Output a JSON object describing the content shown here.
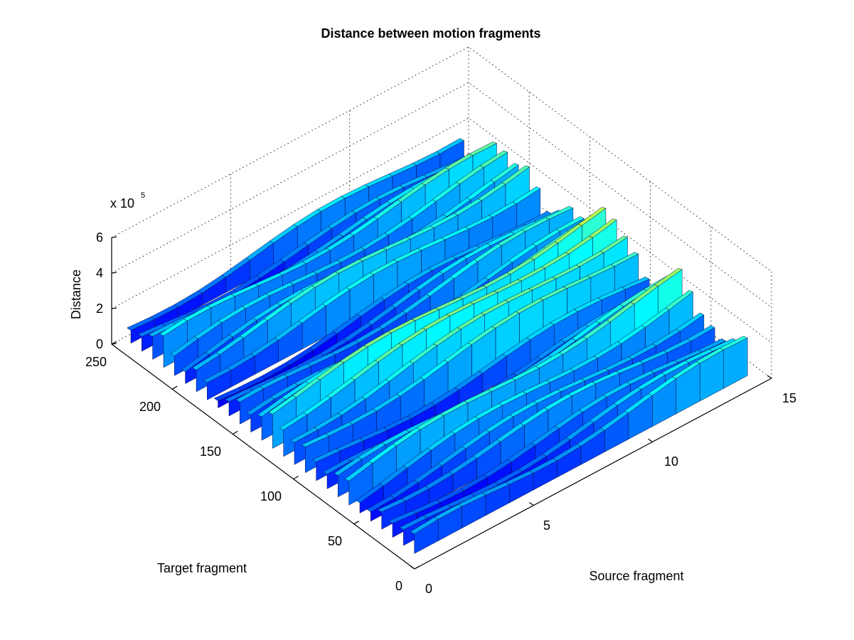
{
  "chart_data": {
    "type": "surface",
    "title": "Distance between motion fragments",
    "xlabel": "Source fragment",
    "ylabel": "Target fragment",
    "zlabel": "Distance",
    "z_exponent_label": {
      "base": "x 10",
      "exp": "5"
    },
    "xlim": [
      0,
      15
    ],
    "ylim": [
      0,
      250
    ],
    "zlim": [
      0,
      6
    ],
    "x_ticks": [
      "0",
      "5",
      "10",
      "15"
    ],
    "y_ticks": [
      "0",
      "50",
      "100",
      "150",
      "200",
      "250"
    ],
    "z_ticks": [
      "0",
      "2",
      "4",
      "6"
    ],
    "colormap": "jet",
    "grid": true,
    "description_ranges": {
      "z_typical_range_x1e5": [
        0.3,
        3.8
      ]
    }
  }
}
